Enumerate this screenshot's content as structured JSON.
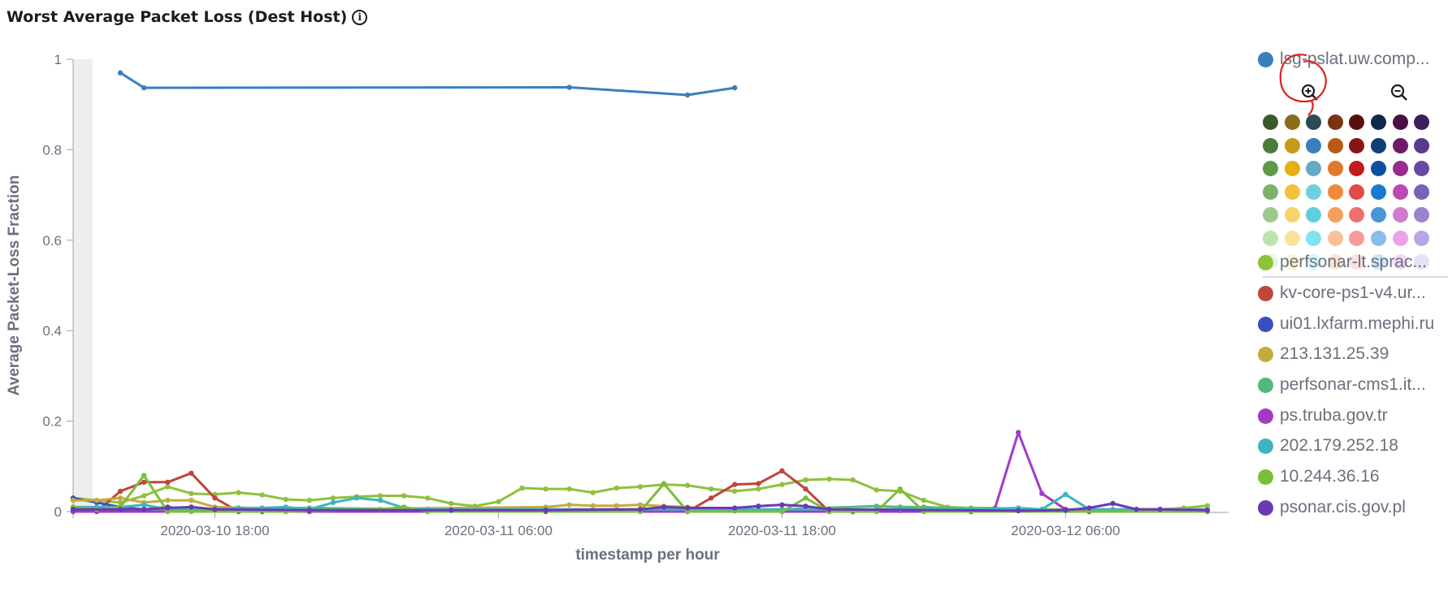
{
  "title": "Worst Average Packet Loss (Dest Host)",
  "info_icon": "info-icon",
  "chart_data": {
    "type": "line",
    "ylabel": "Average Packet-Loss Fraction",
    "xlabel": "timestamp per hour",
    "ylim": [
      0,
      1
    ],
    "yticks": [
      "0",
      "0.2",
      "0.4",
      "0.6",
      "0.8",
      "1"
    ],
    "xticks": [
      {
        "label": "2020-03-10 18:00",
        "x": 6
      },
      {
        "label": "2020-03-11 06:00",
        "x": 18
      },
      {
        "label": "2020-03-11 18:00",
        "x": 30
      },
      {
        "label": "2020-03-12 06:00",
        "x": 42
      }
    ],
    "x_domain": [
      0,
      48.9
    ],
    "series": [
      {
        "name": "lsg-pslat.uw.comp...",
        "color": "#3a7fbc",
        "points": [
          [
            2,
            0.97
          ],
          [
            3,
            0.937
          ],
          [
            21,
            0.938
          ],
          [
            26,
            0.921
          ],
          [
            28,
            0.937
          ]
        ]
      },
      {
        "name": "perfsonar-lt.sprac...",
        "color": "#8fc13b",
        "points": [
          [
            0,
            0.03
          ],
          [
            1,
            0.025
          ],
          [
            2,
            0.02
          ],
          [
            3,
            0.035
          ],
          [
            4,
            0.055
          ],
          [
            5,
            0.04
          ],
          [
            6,
            0.038
          ],
          [
            7,
            0.042
          ],
          [
            8,
            0.037
          ],
          [
            9,
            0.027
          ],
          [
            10,
            0.025
          ],
          [
            11,
            0.03
          ],
          [
            12,
            0.033
          ],
          [
            13,
            0.035
          ],
          [
            14,
            0.035
          ],
          [
            15,
            0.03
          ],
          [
            16,
            0.018
          ],
          [
            17,
            0.012
          ],
          [
            18,
            0.022
          ],
          [
            19,
            0.052
          ],
          [
            20,
            0.05
          ],
          [
            21,
            0.05
          ],
          [
            22,
            0.042
          ],
          [
            23,
            0.052
          ],
          [
            24,
            0.055
          ],
          [
            25,
            0.06
          ],
          [
            26,
            0.058
          ],
          [
            27,
            0.05
          ],
          [
            28,
            0.045
          ],
          [
            29,
            0.05
          ],
          [
            30,
            0.06
          ],
          [
            31,
            0.07
          ],
          [
            32,
            0.072
          ],
          [
            33,
            0.07
          ],
          [
            34,
            0.048
          ],
          [
            35,
            0.045
          ],
          [
            36,
            0.025
          ],
          [
            37,
            0.01
          ],
          [
            38,
            0.008
          ],
          [
            39,
            0.008
          ],
          [
            40,
            0.006
          ],
          [
            41,
            0.005
          ],
          [
            42,
            0.005
          ],
          [
            43,
            0.005
          ],
          [
            44,
            0.005
          ],
          [
            45,
            0.005
          ],
          [
            46,
            0.005
          ],
          [
            47,
            0.008
          ],
          [
            48,
            0.013
          ]
        ]
      },
      {
        "name": "kv-core-ps1-v4.ur...",
        "color": "#c0453a",
        "points": [
          [
            0,
            0
          ],
          [
            1,
            0
          ],
          [
            2,
            0.045
          ],
          [
            3,
            0.065
          ],
          [
            4,
            0.065
          ],
          [
            5,
            0.085
          ],
          [
            6,
            0.03
          ],
          [
            7,
            0
          ],
          [
            8,
            0
          ],
          [
            26,
            0
          ],
          [
            27,
            0.03
          ],
          [
            28,
            0.06
          ],
          [
            29,
            0.062
          ],
          [
            30,
            0.09
          ],
          [
            31,
            0.05
          ],
          [
            32,
            0
          ],
          [
            33,
            0
          ]
        ]
      },
      {
        "name": "ui01.lxfarm.mephi.ru",
        "color": "#3a4fbd",
        "points": [
          [
            0,
            0.03
          ],
          [
            1,
            0.02
          ],
          [
            2,
            0.01
          ],
          [
            3,
            0.005
          ],
          [
            4,
            0.01
          ],
          [
            5,
            0.005
          ],
          [
            6,
            0.003
          ],
          [
            10,
            0.002
          ],
          [
            20,
            0.002
          ],
          [
            28,
            0.002
          ],
          [
            30,
            0.002
          ],
          [
            40,
            0.002
          ],
          [
            48,
            0.002
          ]
        ]
      },
      {
        "name": "213.131.25.39",
        "color": "#c4ab3c",
        "points": [
          [
            0,
            0.025
          ],
          [
            1,
            0.025
          ],
          [
            2,
            0.03
          ],
          [
            3,
            0.02
          ],
          [
            4,
            0.025
          ],
          [
            5,
            0.025
          ],
          [
            6,
            0.01
          ],
          [
            10,
            0.005
          ],
          [
            20,
            0.01
          ],
          [
            21,
            0.015
          ],
          [
            22,
            0.013
          ],
          [
            23,
            0.013
          ],
          [
            24,
            0.015
          ],
          [
            25,
            0.012
          ],
          [
            26,
            0.01
          ],
          [
            27,
            0.005
          ],
          [
            30,
            0.002
          ],
          [
            35,
            0.002
          ],
          [
            40,
            0.002
          ],
          [
            48,
            0.002
          ]
        ]
      },
      {
        "name": "perfsonar-cms1.it...",
        "color": "#54b87a",
        "points": [
          [
            0,
            0.008
          ],
          [
            2,
            0.005
          ],
          [
            5,
            0.005
          ],
          [
            10,
            0.008
          ],
          [
            15,
            0.005
          ],
          [
            20,
            0.005
          ],
          [
            25,
            0.005
          ],
          [
            30,
            0.005
          ],
          [
            34,
            0.012
          ],
          [
            35,
            0.01
          ],
          [
            36,
            0.01
          ],
          [
            38,
            0.006
          ],
          [
            40,
            0.004
          ],
          [
            44,
            0.004
          ],
          [
            48,
            0.004
          ]
        ]
      },
      {
        "name": "ps.truba.gov.tr",
        "color": "#a13bc4",
        "points": [
          [
            0,
            0
          ],
          [
            10,
            0
          ],
          [
            20,
            0
          ],
          [
            30,
            0
          ],
          [
            38,
            0
          ],
          [
            39,
            0.005
          ],
          [
            40,
            0.175
          ],
          [
            41,
            0.04
          ],
          [
            42,
            0.005
          ],
          [
            43,
            0
          ],
          [
            48,
            0
          ]
        ]
      },
      {
        "name": "202.179.252.18",
        "color": "#3fb4bf",
        "points": [
          [
            0,
            0.01
          ],
          [
            1,
            0.01
          ],
          [
            2,
            0.01
          ],
          [
            3,
            0.015
          ],
          [
            4,
            0.005
          ],
          [
            5,
            0.01
          ],
          [
            6,
            0.005
          ],
          [
            7,
            0.008
          ],
          [
            8,
            0.008
          ],
          [
            9,
            0.01
          ],
          [
            10,
            0.005
          ],
          [
            11,
            0.02
          ],
          [
            12,
            0.03
          ],
          [
            13,
            0.025
          ],
          [
            14,
            0.008
          ],
          [
            15,
            0.005
          ],
          [
            30,
            0.005
          ],
          [
            35,
            0.005
          ],
          [
            38,
            0.005
          ],
          [
            40,
            0.008
          ],
          [
            41,
            0.005
          ],
          [
            42,
            0.038
          ],
          [
            43,
            0.005
          ],
          [
            45,
            0.005
          ],
          [
            48,
            0.005
          ]
        ]
      },
      {
        "name": "10.244.36.16",
        "color": "#7abf3a",
        "points": [
          [
            0,
            0.01
          ],
          [
            1,
            0.005
          ],
          [
            2,
            0.01
          ],
          [
            3,
            0.08
          ],
          [
            4,
            0
          ],
          [
            5,
            0
          ],
          [
            9,
            0
          ],
          [
            13,
            0.005
          ],
          [
            14,
            0.01
          ],
          [
            15,
            0
          ],
          [
            24,
            0
          ],
          [
            25,
            0.062
          ],
          [
            26,
            0
          ],
          [
            30,
            0
          ],
          [
            31,
            0.03
          ],
          [
            32,
            0
          ],
          [
            34,
            0
          ],
          [
            35,
            0.05
          ],
          [
            36,
            0
          ],
          [
            48,
            0
          ]
        ]
      },
      {
        "name": "psonar.cis.gov.pl",
        "color": "#6a3ab4",
        "points": [
          [
            0,
            0.005
          ],
          [
            2,
            0.005
          ],
          [
            3,
            0.005
          ],
          [
            4,
            0.008
          ],
          [
            5,
            0.01
          ],
          [
            6,
            0.005
          ],
          [
            10,
            0.003
          ],
          [
            16,
            0.003
          ],
          [
            20,
            0.003
          ],
          [
            24,
            0.005
          ],
          [
            25,
            0.01
          ],
          [
            26,
            0.008
          ],
          [
            28,
            0.008
          ],
          [
            29,
            0.012
          ],
          [
            30,
            0.015
          ],
          [
            31,
            0.012
          ],
          [
            32,
            0.005
          ],
          [
            40,
            0.002
          ],
          [
            42,
            0.003
          ],
          [
            43,
            0.008
          ],
          [
            44,
            0.018
          ],
          [
            45,
            0.005
          ],
          [
            46,
            0.005
          ],
          [
            48,
            0.003
          ]
        ]
      }
    ]
  },
  "legend": {
    "items": [
      {
        "label": "lsg-pslat.uw.comp...",
        "color": "#3a7fbc"
      },
      {
        "label": "perfsonar-lt.sprac...",
        "color": "#8fc13b"
      },
      {
        "label": "kv-core-ps1-v4.ur...",
        "color": "#c0453a"
      },
      {
        "label": "ui01.lxfarm.mephi.ru",
        "color": "#3a4fbd"
      },
      {
        "label": "213.131.25.39",
        "color": "#c4ab3c"
      },
      {
        "label": "perfsonar-cms1.it...",
        "color": "#54b87a"
      },
      {
        "label": "ps.truba.gov.tr",
        "color": "#a13bc4"
      },
      {
        "label": "202.179.252.18",
        "color": "#3fb4bf"
      },
      {
        "label": "10.244.36.16",
        "color": "#7abf3a"
      },
      {
        "label": "psonar.cis.gov.pl",
        "color": "#6a3ab4"
      }
    ],
    "picker": {
      "zoom_in_icon": "zoom-in-icon",
      "zoom_out_icon": "zoom-out-icon",
      "swatches": [
        [
          "#3a5a2a",
          "#8a6d1a",
          "#2e4a55",
          "#7a3510",
          "#5a0f0f",
          "#0f2a4a",
          "#4a1040",
          "#3a1f5a"
        ],
        [
          "#4c7a38",
          "#c99a17",
          "#3a7fbc",
          "#b85a14",
          "#8a1414",
          "#103f75",
          "#6e1a66",
          "#5a3a8a"
        ],
        [
          "#5e9a46",
          "#e5b011",
          "#66a9c9",
          "#e07a2a",
          "#c21a1a",
          "#0d4f9e",
          "#9a2a8e",
          "#6a4aa0"
        ],
        [
          "#7db06a",
          "#f2c23c",
          "#6dd0e0",
          "#f08a3a",
          "#e04a4a",
          "#1a7ad0",
          "#b84ab2",
          "#7a62b8"
        ],
        [
          "#9cc98a",
          "#f7d46a",
          "#5fcfe0",
          "#f5a05a",
          "#f07070",
          "#4a94d8",
          "#d27ad0",
          "#9a84cc"
        ],
        [
          "#bce2ae",
          "#fbe29a",
          "#7fe3f0",
          "#f8c09a",
          "#f89a9a",
          "#8abcea",
          "#e8a2e8",
          "#baa6e6"
        ],
        [
          "#e6f6e0",
          "#fdf3d6",
          "#d6f8fb",
          "#fde4d2",
          "#fde0e0",
          "#cfe6f8",
          "#f8d8f8",
          "#e8e0f8"
        ]
      ]
    }
  }
}
